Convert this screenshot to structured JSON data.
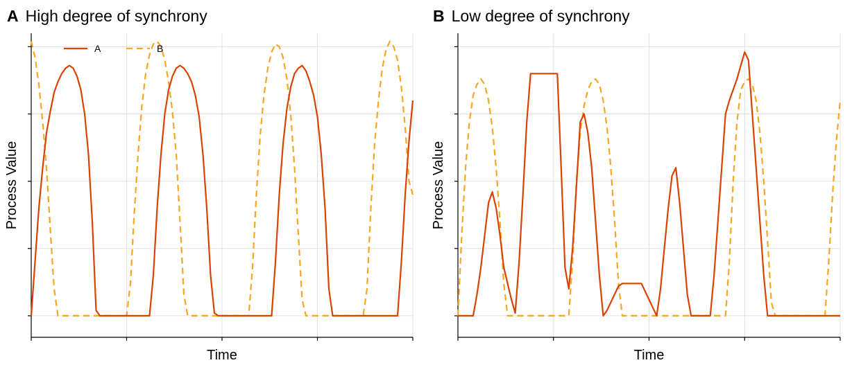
{
  "colors": {
    "A": "#d94301",
    "B": "#f5a623",
    "grid": "#e0e0e0",
    "axis": "#000000"
  },
  "chart_data": [
    {
      "type": "line",
      "panel_letter": "A",
      "title": "High degree of synchrony",
      "xlabel": "Time",
      "ylabel": "Process Value",
      "xlim": [
        0,
        100
      ],
      "ylim": [
        -0.08,
        1.05
      ],
      "grid": true,
      "legend": {
        "placement": "top-left",
        "entries": [
          "A",
          "B"
        ]
      },
      "series": [
        {
          "name": "A",
          "style": "solid",
          "x": [
            0,
            1,
            2,
            3,
            4,
            5,
            6,
            7,
            8,
            9,
            10,
            11,
            12,
            13,
            14,
            15,
            16,
            17,
            18,
            19,
            20,
            21,
            22,
            23,
            24,
            25,
            26,
            27,
            28,
            29,
            30,
            31,
            32,
            33,
            34,
            35,
            36,
            37,
            38,
            39,
            40,
            41,
            42,
            43,
            44,
            45,
            46,
            47,
            48,
            49,
            50,
            51,
            52,
            53,
            54,
            55,
            56,
            57,
            58,
            59,
            60,
            61,
            62,
            63,
            64,
            65,
            66,
            67,
            68,
            69,
            70,
            71,
            72,
            73,
            74,
            75,
            76,
            77,
            78,
            79,
            80,
            81,
            82,
            83,
            84,
            85,
            86,
            87,
            88,
            89,
            90,
            91,
            92,
            93,
            94,
            95,
            96,
            97,
            98,
            99,
            100
          ],
          "y": [
            0.0,
            0.2,
            0.4,
            0.55,
            0.68,
            0.76,
            0.83,
            0.87,
            0.9,
            0.92,
            0.93,
            0.92,
            0.89,
            0.84,
            0.75,
            0.6,
            0.35,
            0.02,
            0.0,
            0.0,
            0.0,
            0.0,
            0.0,
            0.0,
            0.0,
            0.0,
            0.0,
            0.0,
            0.0,
            0.0,
            0.0,
            0.0,
            0.15,
            0.4,
            0.6,
            0.75,
            0.84,
            0.89,
            0.92,
            0.93,
            0.92,
            0.9,
            0.87,
            0.82,
            0.74,
            0.6,
            0.4,
            0.15,
            0.01,
            0.0,
            0.0,
            0.0,
            0.0,
            0.0,
            0.0,
            0.0,
            0.0,
            0.0,
            0.0,
            0.0,
            0.0,
            0.0,
            0.0,
            0.0,
            0.2,
            0.45,
            0.64,
            0.77,
            0.85,
            0.9,
            0.92,
            0.93,
            0.91,
            0.87,
            0.82,
            0.74,
            0.6,
            0.4,
            0.1,
            0.0,
            0.0,
            0.0,
            0.0,
            0.0,
            0.0,
            0.0,
            0.0,
            0.0,
            0.0,
            0.0,
            0.0,
            0.0,
            0.0,
            0.0,
            0.0,
            0.0,
            0.0,
            0.2,
            0.45,
            0.65,
            0.8
          ]
        },
        {
          "name": "B",
          "style": "dashed",
          "x": [
            0,
            1,
            2,
            3,
            4,
            5,
            6,
            7,
            8,
            9,
            10,
            11,
            12,
            13,
            14,
            15,
            16,
            17,
            18,
            19,
            20,
            21,
            22,
            23,
            24,
            25,
            26,
            27,
            28,
            29,
            30,
            31,
            32,
            33,
            34,
            35,
            36,
            37,
            38,
            39,
            40,
            41,
            42,
            43,
            44,
            45,
            46,
            47,
            48,
            49,
            50,
            51,
            52,
            53,
            54,
            55,
            56,
            57,
            58,
            59,
            60,
            61,
            62,
            63,
            64,
            65,
            66,
            67,
            68,
            69,
            70,
            71,
            72,
            73,
            74,
            75,
            76,
            77,
            78,
            79,
            80,
            81,
            82,
            83,
            84,
            85,
            86,
            87,
            88,
            89,
            90,
            91,
            92,
            93,
            94,
            95,
            96,
            97,
            98,
            99,
            100
          ],
          "y": [
            1.02,
            0.96,
            0.86,
            0.72,
            0.55,
            0.32,
            0.1,
            0.0,
            0.0,
            0.0,
            0.0,
            0.0,
            0.0,
            0.0,
            0.0,
            0.0,
            0.0,
            0.0,
            0.0,
            0.0,
            0.0,
            0.0,
            0.0,
            0.0,
            0.0,
            0.0,
            0.12,
            0.38,
            0.6,
            0.78,
            0.9,
            0.97,
            1.01,
            1.02,
            1.0,
            0.95,
            0.87,
            0.76,
            0.6,
            0.35,
            0.08,
            0.0,
            0.0,
            0.0,
            0.0,
            0.0,
            0.0,
            0.0,
            0.0,
            0.0,
            0.0,
            0.0,
            0.0,
            0.0,
            0.0,
            0.0,
            0.0,
            0.0,
            0.18,
            0.45,
            0.67,
            0.82,
            0.92,
            0.98,
            1.01,
            1.0,
            0.96,
            0.88,
            0.75,
            0.55,
            0.3,
            0.06,
            0.0,
            0.0,
            0.0,
            0.0,
            0.0,
            0.0,
            0.0,
            0.0,
            0.0,
            0.0,
            0.0,
            0.0,
            0.0,
            0.0,
            0.0,
            0.0,
            0.1,
            0.4,
            0.64,
            0.8,
            0.92,
            0.99,
            1.02,
            1.0,
            0.95,
            0.85,
            0.7,
            0.5,
            0.45
          ]
        }
      ]
    },
    {
      "type": "line",
      "panel_letter": "B",
      "title": "Low degree of synchrony",
      "xlabel": "Time",
      "ylabel": "Process Value",
      "xlim": [
        0,
        100
      ],
      "ylim": [
        -0.08,
        1.05
      ],
      "grid": true,
      "series": [
        {
          "name": "A",
          "style": "solid",
          "x": [
            0,
            4,
            5,
            6,
            7,
            8,
            9,
            10,
            11,
            12,
            13,
            14,
            15,
            16,
            17,
            18,
            19,
            20,
            21,
            22,
            23,
            24,
            25,
            26,
            27,
            28,
            29,
            30,
            31,
            32,
            33,
            34,
            35,
            36,
            37,
            38,
            39,
            40,
            41,
            42,
            43,
            44,
            45,
            46,
            47,
            48,
            49,
            50,
            51,
            52,
            53,
            54,
            55,
            56,
            57,
            58,
            59,
            60,
            61,
            62,
            63,
            64,
            65,
            66,
            67,
            68,
            69,
            70,
            71,
            72,
            73,
            74,
            75,
            76,
            77,
            78,
            79,
            80,
            81,
            82,
            83,
            84,
            85,
            86,
            87,
            88,
            89,
            90,
            91,
            92,
            93,
            94,
            95,
            96,
            97,
            98,
            99,
            100
          ],
          "y": [
            0.0,
            0.0,
            0.08,
            0.18,
            0.3,
            0.42,
            0.46,
            0.4,
            0.3,
            0.18,
            0.12,
            0.06,
            0.01,
            0.2,
            0.45,
            0.72,
            0.9,
            0.9,
            0.9,
            0.9,
            0.9,
            0.9,
            0.9,
            0.9,
            0.55,
            0.18,
            0.1,
            0.25,
            0.48,
            0.72,
            0.75,
            0.68,
            0.55,
            0.35,
            0.15,
            0.0,
            0.02,
            0.05,
            0.08,
            0.11,
            0.12,
            0.12,
            0.12,
            0.12,
            0.12,
            0.12,
            0.09,
            0.06,
            0.03,
            0.0,
            0.1,
            0.25,
            0.4,
            0.52,
            0.55,
            0.42,
            0.25,
            0.08,
            0.0,
            0.0,
            0.0,
            0.0,
            0.0,
            0.0,
            0.15,
            0.35,
            0.55,
            0.75,
            0.8,
            0.84,
            0.88,
            0.93,
            0.98,
            0.95,
            0.75,
            0.55,
            0.35,
            0.15,
            0.0,
            0.0,
            0.0,
            0.0,
            0.0,
            0.0,
            0.0,
            0.0,
            0.0,
            0.0,
            0.0,
            0.0,
            0.0,
            0.0,
            0.0,
            0.0,
            0.0,
            0.0,
            0.0,
            0.0
          ]
        },
        {
          "name": "B",
          "style": "dashed",
          "x": [
            0,
            1,
            2,
            3,
            4,
            5,
            6,
            7,
            8,
            9,
            10,
            11,
            12,
            13,
            14,
            15,
            16,
            17,
            18,
            19,
            20,
            21,
            22,
            23,
            24,
            25,
            26,
            27,
            28,
            29,
            30,
            31,
            32,
            33,
            34,
            35,
            36,
            37,
            38,
            39,
            40,
            41,
            42,
            43,
            44,
            45,
            46,
            47,
            48,
            49,
            50,
            51,
            52,
            53,
            54,
            55,
            56,
            57,
            58,
            59,
            60,
            61,
            62,
            63,
            64,
            65,
            66,
            67,
            68,
            69,
            70,
            71,
            72,
            73,
            74,
            75,
            76,
            77,
            78,
            79,
            80,
            81,
            82,
            83,
            84,
            85,
            86,
            87,
            88,
            89,
            90,
            91,
            92,
            93,
            94,
            95,
            96,
            97,
            98,
            99,
            100
          ],
          "y": [
            0.0,
            0.3,
            0.55,
            0.72,
            0.82,
            0.86,
            0.88,
            0.86,
            0.8,
            0.7,
            0.55,
            0.35,
            0.12,
            0.0,
            0.0,
            0.0,
            0.0,
            0.0,
            0.0,
            0.0,
            0.0,
            0.0,
            0.0,
            0.0,
            0.0,
            0.0,
            0.0,
            0.0,
            0.0,
            0.0,
            0.2,
            0.5,
            0.68,
            0.78,
            0.84,
            0.87,
            0.88,
            0.86,
            0.8,
            0.7,
            0.55,
            0.35,
            0.12,
            0.0,
            0.0,
            0.0,
            0.0,
            0.0,
            0.0,
            0.0,
            0.0,
            0.0,
            0.0,
            0.0,
            0.0,
            0.0,
            0.0,
            0.0,
            0.0,
            0.0,
            0.0,
            0.0,
            0.0,
            0.0,
            0.0,
            0.0,
            0.0,
            0.0,
            0.0,
            0.0,
            0.0,
            0.2,
            0.5,
            0.72,
            0.84,
            0.87,
            0.88,
            0.86,
            0.8,
            0.68,
            0.5,
            0.28,
            0.05,
            0.0,
            0.0,
            0.0,
            0.0,
            0.0,
            0.0,
            0.0,
            0.0,
            0.0,
            0.0,
            0.0,
            0.0,
            0.0,
            0.0,
            0.2,
            0.45,
            0.65,
            0.8
          ]
        }
      ]
    }
  ]
}
